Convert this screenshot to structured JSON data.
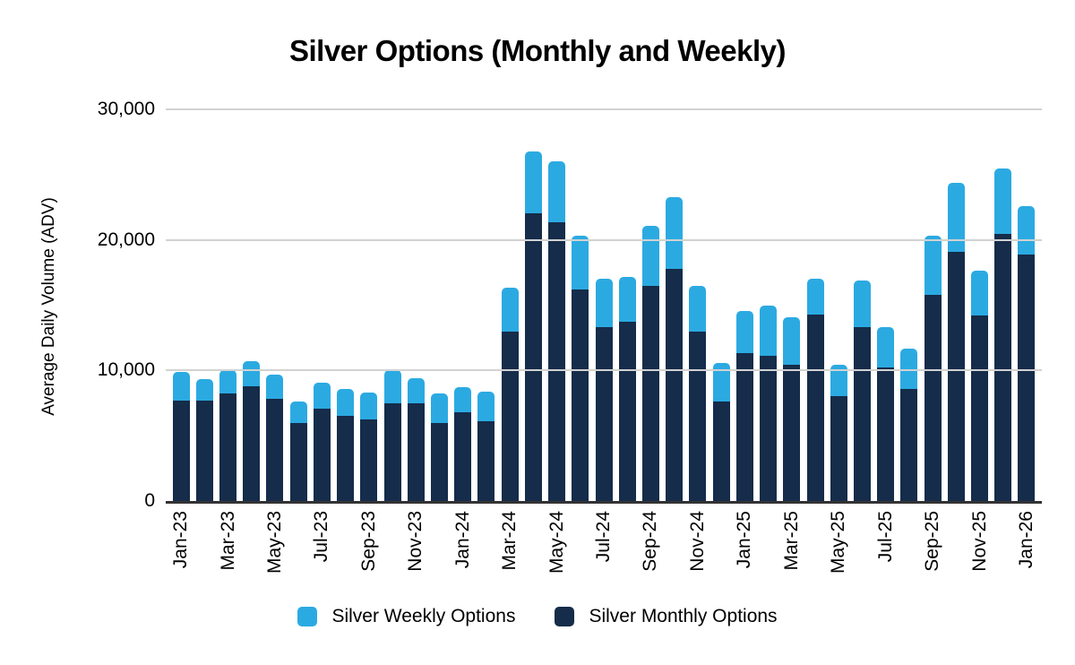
{
  "chart_data": {
    "type": "bar",
    "stacked": true,
    "title": "Silver Options (Monthly and Weekly)",
    "xlabel": "",
    "ylabel": "Average Daily Volume (ADV)",
    "ylim": [
      0,
      30000
    ],
    "grid": "horizontal",
    "legend_position": "bottom",
    "x_label_rotation": -90,
    "x_label_shown_every": 2,
    "yticks": [
      {
        "value": 0,
        "label": "0"
      },
      {
        "value": 10000,
        "label": "10,000"
      },
      {
        "value": 20000,
        "label": "20,000"
      },
      {
        "value": 30000,
        "label": "30,000"
      }
    ],
    "categories": [
      "Jan-23",
      "Feb-23",
      "Mar-23",
      "Apr-23",
      "May-23",
      "Jun-23",
      "Jul-23",
      "Aug-23",
      "Sep-23",
      "Oct-23",
      "Nov-23",
      "Dec-23",
      "Jan-24",
      "Feb-24",
      "Mar-24",
      "Apr-24",
      "May-24",
      "Jun-24",
      "Jul-24",
      "Aug-24",
      "Sep-24",
      "Oct-24",
      "Nov-24",
      "Dec-24",
      "Jan-25",
      "Feb-25",
      "Mar-25",
      "Apr-25",
      "May-25",
      "Jun-25",
      "Jul-25",
      "Aug-25",
      "Sep-25",
      "Oct-25",
      "Nov-25",
      "Dec-25",
      "Jan-26"
    ],
    "series": [
      {
        "name": "Silver Weekly Options",
        "color": "#2BAAE2",
        "stack_position": "top",
        "values": [
          2200,
          1650,
          1800,
          1900,
          1850,
          1700,
          2000,
          2050,
          2050,
          2550,
          1900,
          2250,
          1900,
          2300,
          3400,
          4750,
          4650,
          4100,
          3650,
          3400,
          4550,
          5450,
          3500,
          3000,
          3250,
          3850,
          3650,
          2700,
          2450,
          3600,
          3100,
          3100,
          4500,
          5250,
          3450,
          5050,
          3750
        ]
      },
      {
        "name": "Silver Monthly Options",
        "color": "#152C4A",
        "stack_position": "bottom",
        "values": [
          7700,
          7700,
          8250,
          8800,
          7850,
          5950,
          7050,
          6500,
          6250,
          7500,
          7500,
          6000,
          6800,
          6100,
          12950,
          22050,
          21350,
          16200,
          13350,
          13750,
          16500,
          17800,
          12950,
          7600,
          11300,
          11150,
          10450,
          14300,
          8000,
          13300,
          10200,
          8550,
          15800,
          19100,
          14200,
          20450,
          18850
        ]
      }
    ],
    "colors": {
      "gridline": "#d2d2d2",
      "axis_line": "#333333",
      "background": "#ffffff",
      "text": "#000000"
    }
  }
}
